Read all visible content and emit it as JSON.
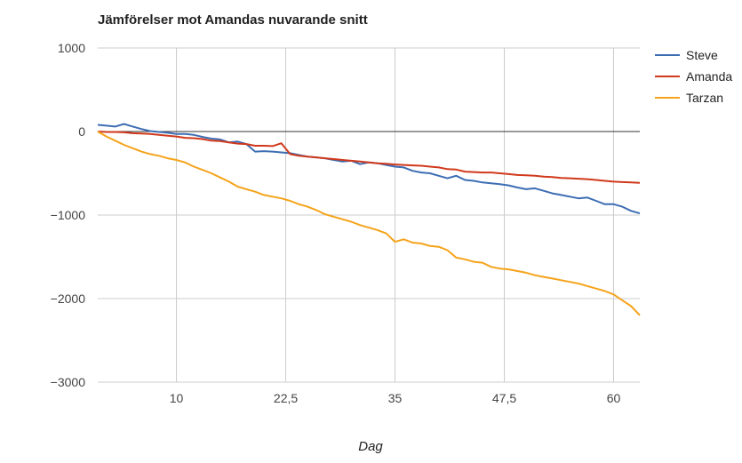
{
  "chart_data": {
    "type": "line",
    "title": "Jämförelser mot Amandas nuvarande snitt",
    "xlabel": "Dag",
    "ylabel": "",
    "xlim": [
      1,
      63
    ],
    "ylim": [
      -3000,
      1000
    ],
    "x_ticks": [
      10,
      22.5,
      35,
      47.5,
      60
    ],
    "x_tick_labels": [
      "10",
      "22,5",
      "35",
      "47,5",
      "60"
    ],
    "y_ticks": [
      1000,
      0,
      -1000,
      -2000,
      -3000
    ],
    "y_tick_labels": [
      "1000",
      "0",
      "−1000",
      "−2000",
      "−3000"
    ],
    "grid": true,
    "legend_position": "right",
    "x": [
      1,
      2,
      3,
      4,
      5,
      6,
      7,
      8,
      9,
      10,
      11,
      12,
      13,
      14,
      15,
      16,
      17,
      18,
      19,
      20,
      21,
      22,
      23,
      24,
      25,
      26,
      27,
      28,
      29,
      30,
      31,
      32,
      33,
      34,
      35,
      36,
      37,
      38,
      39,
      40,
      41,
      42,
      43,
      44,
      45,
      46,
      47,
      48,
      49,
      50,
      51,
      52,
      53,
      54,
      55,
      56,
      57,
      58,
      59,
      60,
      61,
      62,
      63
    ],
    "series": [
      {
        "name": "Steve",
        "color": "#3d6db3",
        "values": [
          80,
          70,
          60,
          90,
          60,
          30,
          5,
          -5,
          -15,
          -30,
          -30,
          -40,
          -65,
          -85,
          -95,
          -130,
          -120,
          -150,
          -240,
          -235,
          -240,
          -250,
          -260,
          -280,
          -300,
          -310,
          -320,
          -340,
          -360,
          -350,
          -390,
          -370,
          -380,
          -400,
          -420,
          -430,
          -470,
          -490,
          -500,
          -530,
          -560,
          -530,
          -580,
          -590,
          -610,
          -620,
          -630,
          -645,
          -670,
          -690,
          -680,
          -710,
          -740,
          -760,
          -780,
          -800,
          -790,
          -830,
          -870,
          -870,
          -900,
          -950,
          -980
        ]
      },
      {
        "name": "Amanda",
        "color": "#d0391c",
        "values": [
          0,
          -5,
          -5,
          -10,
          -20,
          -25,
          -30,
          -40,
          -50,
          -60,
          -75,
          -80,
          -90,
          -110,
          -115,
          -130,
          -145,
          -150,
          -170,
          -170,
          -175,
          -140,
          -270,
          -290,
          -300,
          -310,
          -320,
          -330,
          -340,
          -350,
          -360,
          -370,
          -380,
          -385,
          -395,
          -400,
          -405,
          -410,
          -420,
          -430,
          -450,
          -455,
          -480,
          -485,
          -490,
          -490,
          -500,
          -510,
          -520,
          -525,
          -530,
          -540,
          -545,
          -555,
          -560,
          -565,
          -570,
          -580,
          -590,
          -600,
          -605,
          -610,
          -615
        ]
      },
      {
        "name": "Tarzan",
        "color": "#f5a31a",
        "values": [
          0,
          -60,
          -110,
          -160,
          -200,
          -240,
          -270,
          -290,
          -320,
          -340,
          -370,
          -420,
          -460,
          -500,
          -550,
          -600,
          -660,
          -690,
          -720,
          -760,
          -780,
          -800,
          -830,
          -870,
          -900,
          -940,
          -990,
          -1020,
          -1050,
          -1080,
          -1120,
          -1150,
          -1180,
          -1220,
          -1320,
          -1290,
          -1330,
          -1340,
          -1370,
          -1380,
          -1420,
          -1510,
          -1530,
          -1560,
          -1570,
          -1620,
          -1640,
          -1650,
          -1670,
          -1690,
          -1720,
          -1740,
          -1760,
          -1780,
          -1800,
          -1820,
          -1850,
          -1880,
          -1910,
          -1950,
          -2020,
          -2090,
          -2200
        ]
      }
    ]
  }
}
